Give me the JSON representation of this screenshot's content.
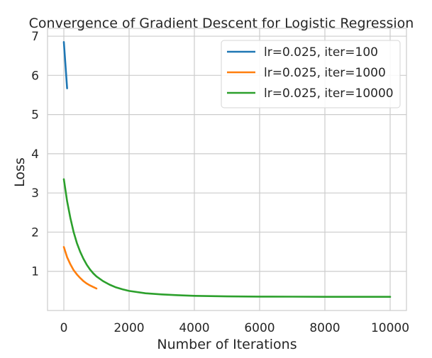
{
  "chart_data": {
    "type": "line",
    "title": "Convergence of Gradient Descent for Logistic Regression",
    "xlabel": "Number of Iterations",
    "ylabel": "Loss",
    "xlim": [
      -500,
      10500
    ],
    "ylim": [
      0,
      7.2
    ],
    "xticks": [
      0,
      2000,
      4000,
      6000,
      8000,
      10000
    ],
    "yticks": [
      1,
      2,
      3,
      4,
      5,
      6,
      7
    ],
    "xtick_labels": [
      "0",
      "2000",
      "4000",
      "6000",
      "8000",
      "10000"
    ],
    "ytick_labels": [
      "1",
      "2",
      "3",
      "4",
      "5",
      "6",
      "7"
    ],
    "grid": true,
    "legend_position": "top-right",
    "series": [
      {
        "name": "lr=0.025, iter=100",
        "color": "#1f77b4",
        "x": [
          0,
          100
        ],
        "y": [
          6.85,
          5.67
        ]
      },
      {
        "name": "lr=0.025, iter=1000",
        "color": "#ff7f0e",
        "x": [
          0,
          100,
          200,
          300,
          400,
          500,
          600,
          700,
          800,
          900,
          1000
        ],
        "y": [
          1.62,
          1.36,
          1.18,
          1.03,
          0.92,
          0.83,
          0.75,
          0.69,
          0.64,
          0.6,
          0.56
        ]
      },
      {
        "name": "lr=0.025, iter=10000",
        "color": "#2ca02c",
        "x": [
          0,
          100,
          200,
          300,
          400,
          500,
          600,
          700,
          800,
          900,
          1000,
          1200,
          1400,
          1600,
          1800,
          2000,
          2500,
          3000,
          3500,
          4000,
          5000,
          6000,
          7000,
          8000,
          9000,
          10000
        ],
        "y": [
          3.35,
          2.79,
          2.36,
          2.0,
          1.72,
          1.5,
          1.32,
          1.17,
          1.05,
          0.95,
          0.87,
          0.75,
          0.66,
          0.59,
          0.54,
          0.5,
          0.44,
          0.41,
          0.39,
          0.375,
          0.36,
          0.355,
          0.352,
          0.35,
          0.35,
          0.35
        ]
      }
    ]
  }
}
